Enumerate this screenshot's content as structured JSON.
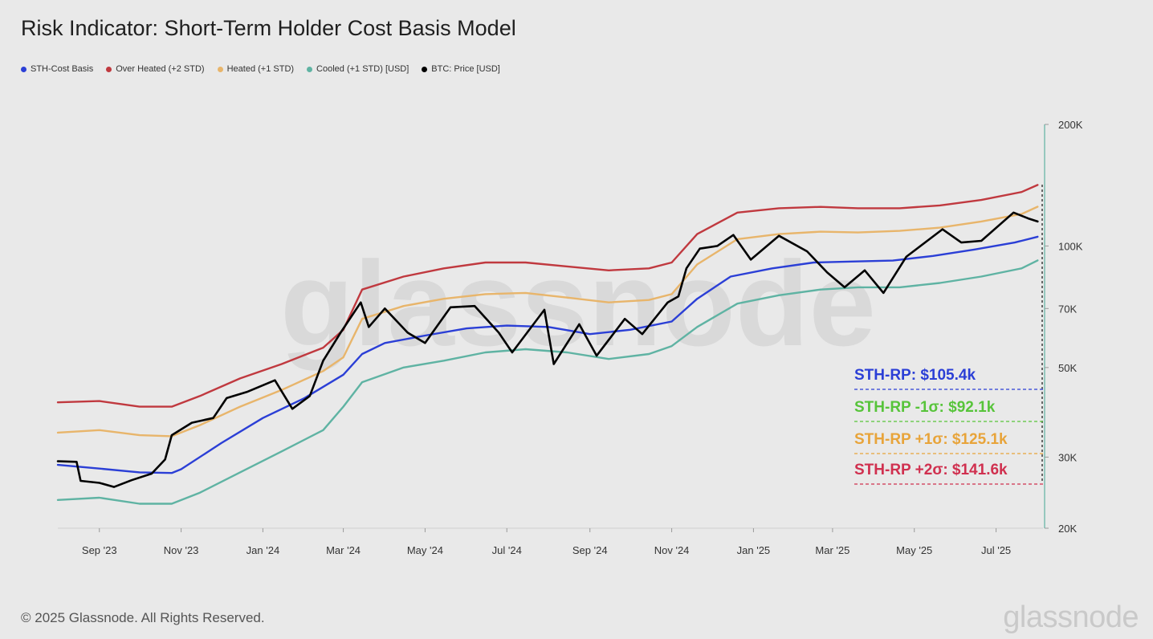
{
  "chart_data": {
    "type": "line",
    "title": "Risk Indicator: Short-Term Holder Cost Basis Model",
    "y_scale": "log",
    "ylim": [
      20000,
      200000
    ],
    "xlim": [
      "2023-08-01",
      "2025-08-05"
    ],
    "legend_position": "top-left",
    "grid": false,
    "x_ticks": [
      {
        "date": "2023-09-01",
        "label": "Sep '23"
      },
      {
        "date": "2023-11-01",
        "label": "Nov '23"
      },
      {
        "date": "2024-01-01",
        "label": "Jan '24"
      },
      {
        "date": "2024-03-01",
        "label": "Mar '24"
      },
      {
        "date": "2024-05-01",
        "label": "May '24"
      },
      {
        "date": "2024-07-01",
        "label": "Jul '24"
      },
      {
        "date": "2024-09-01",
        "label": "Sep '24"
      },
      {
        "date": "2024-11-01",
        "label": "Nov '24"
      },
      {
        "date": "2025-01-01",
        "label": "Jan '25"
      },
      {
        "date": "2025-03-01",
        "label": "Mar '25"
      },
      {
        "date": "2025-05-01",
        "label": "May '25"
      },
      {
        "date": "2025-07-01",
        "label": "Jul '25"
      }
    ],
    "y_ticks": [
      {
        "value": 20000,
        "label": "20K"
      },
      {
        "value": 30000,
        "label": "30K"
      },
      {
        "value": 50000,
        "label": "50K"
      },
      {
        "value": 70000,
        "label": "70K"
      },
      {
        "value": 100000,
        "label": "100K"
      },
      {
        "value": 200000,
        "label": "200K"
      }
    ],
    "series": [
      {
        "name": "STH-Cost Basis",
        "color": "#2b3fd6",
        "points": [
          [
            "2023-08-01",
            28700
          ],
          [
            "2023-09-01",
            28100
          ],
          [
            "2023-10-01",
            27500
          ],
          [
            "2023-10-25",
            27400
          ],
          [
            "2023-11-01",
            28000
          ],
          [
            "2023-12-01",
            32500
          ],
          [
            "2024-01-01",
            37500
          ],
          [
            "2024-02-01",
            42000
          ],
          [
            "2024-03-01",
            48000
          ],
          [
            "2024-03-15",
            54000
          ],
          [
            "2024-04-01",
            57500
          ],
          [
            "2024-05-01",
            60000
          ],
          [
            "2024-06-01",
            62500
          ],
          [
            "2024-07-01",
            63500
          ],
          [
            "2024-08-01",
            63000
          ],
          [
            "2024-09-01",
            60500
          ],
          [
            "2024-10-01",
            62000
          ],
          [
            "2024-11-01",
            65000
          ],
          [
            "2024-11-20",
            74000
          ],
          [
            "2024-12-15",
            84000
          ],
          [
            "2025-01-15",
            88000
          ],
          [
            "2025-02-15",
            91000
          ],
          [
            "2025-03-15",
            91500
          ],
          [
            "2025-04-15",
            92000
          ],
          [
            "2025-05-15",
            94500
          ],
          [
            "2025-06-15",
            98000
          ],
          [
            "2025-07-15",
            102000
          ],
          [
            "2025-08-01",
            105400
          ]
        ]
      },
      {
        "name": "Over Heated (+2 STD)",
        "color": "#c0393f",
        "points": [
          [
            "2023-08-01",
            41000
          ],
          [
            "2023-09-01",
            41300
          ],
          [
            "2023-10-01",
            40000
          ],
          [
            "2023-10-25",
            40000
          ],
          [
            "2023-11-15",
            42500
          ],
          [
            "2023-12-15",
            47000
          ],
          [
            "2024-01-15",
            51000
          ],
          [
            "2024-02-15",
            56000
          ],
          [
            "2024-03-01",
            62000
          ],
          [
            "2024-03-15",
            78000
          ],
          [
            "2024-04-15",
            84000
          ],
          [
            "2024-05-15",
            88000
          ],
          [
            "2024-06-15",
            91000
          ],
          [
            "2024-07-15",
            91000
          ],
          [
            "2024-08-15",
            89000
          ],
          [
            "2024-09-15",
            87000
          ],
          [
            "2024-10-15",
            88000
          ],
          [
            "2024-11-01",
            91000
          ],
          [
            "2024-11-20",
            107000
          ],
          [
            "2024-12-20",
            121000
          ],
          [
            "2025-01-20",
            124000
          ],
          [
            "2025-02-20",
            125000
          ],
          [
            "2025-03-20",
            124000
          ],
          [
            "2025-04-20",
            124000
          ],
          [
            "2025-05-20",
            126000
          ],
          [
            "2025-06-20",
            130000
          ],
          [
            "2025-07-20",
            136000
          ],
          [
            "2025-08-01",
            141600
          ]
        ]
      },
      {
        "name": "Heated (+1 STD)",
        "color": "#e8b56b",
        "points": [
          [
            "2023-08-01",
            34500
          ],
          [
            "2023-09-01",
            35000
          ],
          [
            "2023-10-01",
            34000
          ],
          [
            "2023-10-25",
            33800
          ],
          [
            "2023-11-15",
            36000
          ],
          [
            "2023-12-15",
            40000
          ],
          [
            "2024-01-15",
            44000
          ],
          [
            "2024-02-15",
            49000
          ],
          [
            "2024-03-01",
            53000
          ],
          [
            "2024-03-15",
            66000
          ],
          [
            "2024-04-15",
            71000
          ],
          [
            "2024-05-15",
            74000
          ],
          [
            "2024-06-15",
            76000
          ],
          [
            "2024-07-15",
            76500
          ],
          [
            "2024-08-15",
            74500
          ],
          [
            "2024-09-15",
            72500
          ],
          [
            "2024-10-15",
            73500
          ],
          [
            "2024-11-01",
            76000
          ],
          [
            "2024-11-20",
            90000
          ],
          [
            "2024-12-20",
            104000
          ],
          [
            "2025-01-20",
            107000
          ],
          [
            "2025-02-20",
            108500
          ],
          [
            "2025-03-20",
            108000
          ],
          [
            "2025-04-20",
            109000
          ],
          [
            "2025-05-20",
            111000
          ],
          [
            "2025-06-20",
            115000
          ],
          [
            "2025-07-20",
            120000
          ],
          [
            "2025-08-01",
            125100
          ]
        ]
      },
      {
        "name": "Cooled (+1 STD) [USD]",
        "color": "#5fb3a3",
        "points": [
          [
            "2023-08-01",
            23500
          ],
          [
            "2023-09-01",
            23800
          ],
          [
            "2023-10-01",
            23000
          ],
          [
            "2023-10-25",
            23000
          ],
          [
            "2023-11-15",
            24500
          ],
          [
            "2023-12-15",
            27500
          ],
          [
            "2024-01-15",
            31000
          ],
          [
            "2024-02-15",
            35000
          ],
          [
            "2024-03-01",
            40000
          ],
          [
            "2024-03-15",
            46000
          ],
          [
            "2024-04-15",
            50000
          ],
          [
            "2024-05-15",
            52000
          ],
          [
            "2024-06-15",
            54500
          ],
          [
            "2024-07-15",
            55500
          ],
          [
            "2024-08-15",
            54500
          ],
          [
            "2024-09-15",
            52500
          ],
          [
            "2024-10-15",
            54000
          ],
          [
            "2024-11-01",
            56500
          ],
          [
            "2024-11-20",
            63000
          ],
          [
            "2024-12-20",
            72000
          ],
          [
            "2025-01-20",
            75500
          ],
          [
            "2025-02-20",
            78000
          ],
          [
            "2025-03-20",
            79000
          ],
          [
            "2025-04-20",
            79000
          ],
          [
            "2025-05-20",
            81000
          ],
          [
            "2025-06-20",
            84000
          ],
          [
            "2025-07-20",
            88000
          ],
          [
            "2025-08-01",
            92100
          ]
        ]
      },
      {
        "name": "BTC: Price [USD]",
        "color": "#000000",
        "points": [
          [
            "2023-08-01",
            29300
          ],
          [
            "2023-08-15",
            29200
          ],
          [
            "2023-08-18",
            26200
          ],
          [
            "2023-09-01",
            25900
          ],
          [
            "2023-09-12",
            25300
          ],
          [
            "2023-09-25",
            26300
          ],
          [
            "2023-10-10",
            27300
          ],
          [
            "2023-10-20",
            29600
          ],
          [
            "2023-10-25",
            34000
          ],
          [
            "2023-11-09",
            36500
          ],
          [
            "2023-11-25",
            37500
          ],
          [
            "2023-12-05",
            42000
          ],
          [
            "2023-12-20",
            43500
          ],
          [
            "2024-01-10",
            46500
          ],
          [
            "2024-01-23",
            39500
          ],
          [
            "2024-02-05",
            42500
          ],
          [
            "2024-02-15",
            52000
          ],
          [
            "2024-02-28",
            61000
          ],
          [
            "2024-03-14",
            72500
          ],
          [
            "2024-03-20",
            63000
          ],
          [
            "2024-04-01",
            70000
          ],
          [
            "2024-04-18",
            61000
          ],
          [
            "2024-05-01",
            57500
          ],
          [
            "2024-05-20",
            70500
          ],
          [
            "2024-06-07",
            71000
          ],
          [
            "2024-06-25",
            61000
          ],
          [
            "2024-07-05",
            54500
          ],
          [
            "2024-07-29",
            69500
          ],
          [
            "2024-08-05",
            51000
          ],
          [
            "2024-08-24",
            64000
          ],
          [
            "2024-09-06",
            53500
          ],
          [
            "2024-09-27",
            66000
          ],
          [
            "2024-10-10",
            60500
          ],
          [
            "2024-10-29",
            72500
          ],
          [
            "2024-11-06",
            75000
          ],
          [
            "2024-11-12",
            88000
          ],
          [
            "2024-11-22",
            98500
          ],
          [
            "2024-12-05",
            100000
          ],
          [
            "2024-12-17",
            106500
          ],
          [
            "2024-12-30",
            92500
          ],
          [
            "2025-01-20",
            106000
          ],
          [
            "2025-02-10",
            97000
          ],
          [
            "2025-02-25",
            86000
          ],
          [
            "2025-03-10",
            79000
          ],
          [
            "2025-03-25",
            87000
          ],
          [
            "2025-04-08",
            76500
          ],
          [
            "2025-04-25",
            94000
          ],
          [
            "2025-05-22",
            110000
          ],
          [
            "2025-06-05",
            102000
          ],
          [
            "2025-06-20",
            103000
          ],
          [
            "2025-07-14",
            121000
          ],
          [
            "2025-07-25",
            117000
          ],
          [
            "2025-08-01",
            115000
          ]
        ]
      }
    ],
    "annotations": [
      {
        "label": "STH-RP: $105.4k",
        "color": "#2b3fd6"
      },
      {
        "label": "STH-RP -1σ: $92.1k",
        "color": "#57c43a"
      },
      {
        "label": "STH-RP +1σ: $125.1k",
        "color": "#e8a43a"
      },
      {
        "label": "STH-RP +2σ: $141.6k",
        "color": "#d0304f"
      }
    ]
  },
  "header": {
    "title": "Risk Indicator: Short-Term Holder Cost Basis Model"
  },
  "legend": {
    "items": [
      {
        "label": "STH-Cost Basis",
        "color": "#2b3fd6"
      },
      {
        "label": "Over Heated (+2 STD)",
        "color": "#c0393f"
      },
      {
        "label": "Heated (+1 STD)",
        "color": "#e8b56b"
      },
      {
        "label": "Cooled (+1 STD) [USD]",
        "color": "#5fb3a3"
      },
      {
        "label": "BTC: Price [USD]",
        "color": "#000000"
      }
    ]
  },
  "footer": {
    "copyright": "© 2025 Glassnode. All Rights Reserved.",
    "brand": "glassnode"
  },
  "watermark": "glassnode"
}
